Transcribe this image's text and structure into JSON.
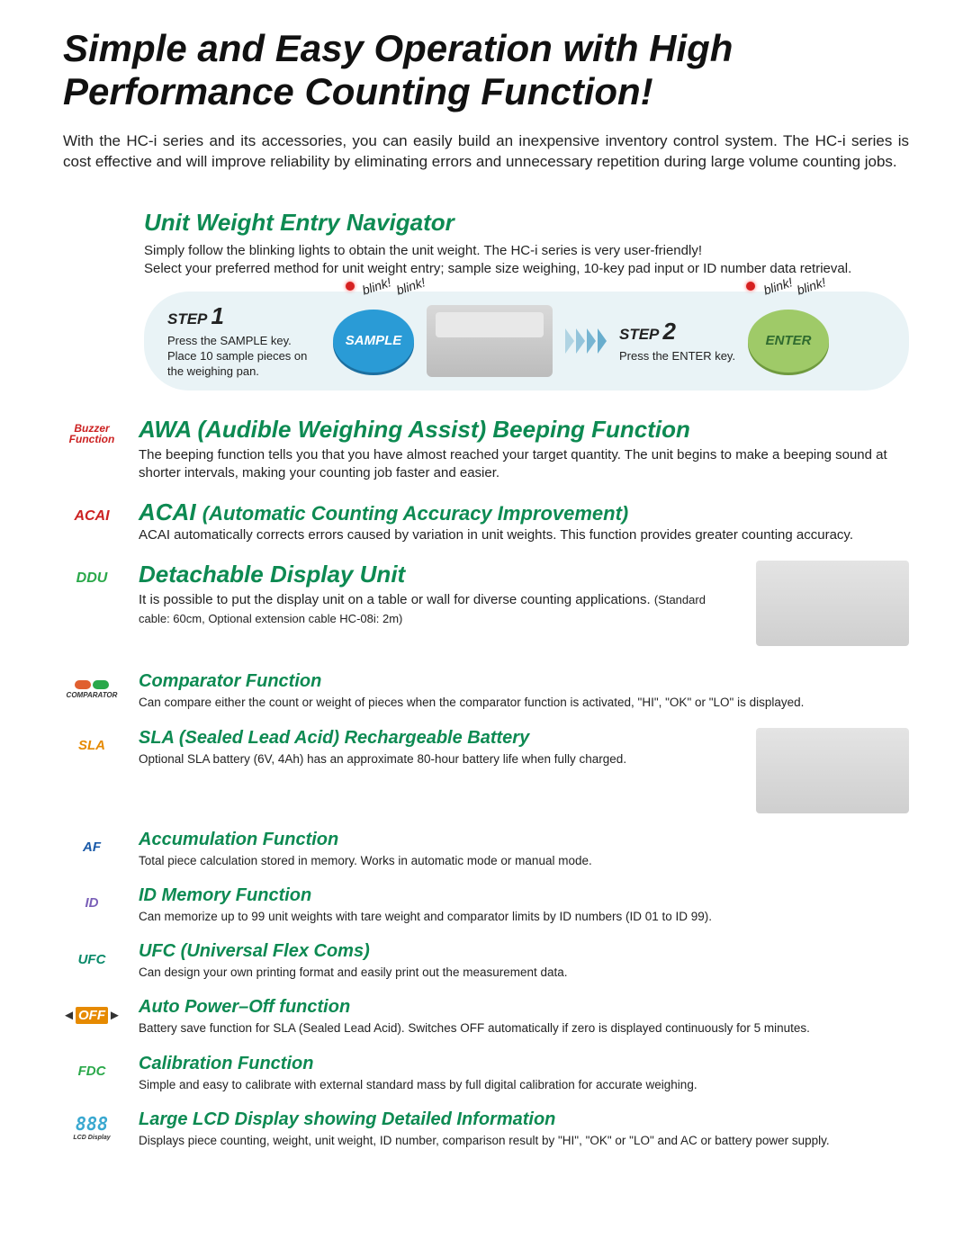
{
  "title": "Simple and Easy Operation with High Performance Counting Function!",
  "intro": "With the HC-i series and its accessories, you can easily build an inexpensive inventory control system. The HC-i series is cost effective and will improve reliability by eliminating errors and unnecessary repetition during large volume counting jobs.",
  "navigator": {
    "title": "Unit Weight Entry Navigator",
    "body1": "Simply follow the blinking lights to obtain the unit weight. The HC-i series is very user-friendly!",
    "body2": "Select your preferred method for unit weight entry; sample size weighing, 10-key pad input or ID number data retrieval.",
    "step1_label": "STEP",
    "step1_num": "1",
    "step1_text": "Press the SAMPLE key. Place 10 sample pieces on the weighing pan.",
    "sample_btn": "SAMPLE",
    "blink": "blink!",
    "step2_label": "STEP",
    "step2_num": "2",
    "step2_text": "Press the ENTER key.",
    "enter_btn": "ENTER"
  },
  "awa": {
    "icon_label": "Buzzer Function",
    "title": "AWA (Audible Weighing Assist) Beeping Function",
    "body": "The beeping function tells you that you have almost reached your target quantity. The unit begins to make a beeping sound at shorter intervals, making your counting job faster and easier."
  },
  "acai": {
    "icon_label": "ACAI",
    "title_main": "ACAI ",
    "title_paren": "(Automatic Counting Accuracy Improvement)",
    "body": "ACAI automatically corrects errors caused by variation in unit weights. This function provides greater counting accuracy."
  },
  "ddu": {
    "icon_label": "DDU",
    "title": "Detachable Display Unit",
    "body": "It is possible to put the display unit on a table or wall for diverse counting applications. ",
    "note": "(Standard cable: 60cm, Optional extension cable HC-08i: 2m)"
  },
  "features": [
    {
      "icon": "COMPARATOR",
      "icon_color": "#333",
      "title": "Comparator Function",
      "body": "Can compare either the count or weight of pieces when the comparator function is activated, \"HI\", \"OK\" or \"LO\" is displayed."
    },
    {
      "icon": "SLA",
      "icon_color": "#e68a00",
      "title": "SLA (Sealed Lead Acid) Rechargeable Battery",
      "body": "Optional SLA battery (6V, 4Ah) has an approximate 80-hour battery life when fully charged."
    },
    {
      "icon": "AF",
      "icon_color": "#1a5aa8",
      "title": "Accumulation Function",
      "body": "Total piece calculation stored in memory. Works in automatic mode or manual mode."
    },
    {
      "icon": "ID",
      "icon_color": "#7a5fb8",
      "title": "ID Memory Function",
      "body": "Can memorize up to 99 unit weights with tare weight and comparator limits by ID numbers (ID 01 to ID 99)."
    },
    {
      "icon": "UFC",
      "icon_color": "#0a8a6a",
      "title": "UFC (Universal Flex Coms)",
      "body": "Can design your own printing format and easily print out the measurement data."
    },
    {
      "icon": "OFF",
      "icon_color": "#e68a00",
      "title": "Auto Power–Off function",
      "body": "Battery save function for SLA (Sealed Lead Acid). Switches OFF automatically if zero is displayed continuously for 5 minutes."
    },
    {
      "icon": "FDC",
      "icon_color": "#2aa84a",
      "title": "Calibration Function",
      "body": "Simple and easy to calibrate with external standard mass by full digital calibration for accurate weighing."
    },
    {
      "icon": "888",
      "icon_color": "#3aa8d0",
      "title": "Large LCD Display showing Detailed Information",
      "body": "Displays piece counting, weight, unit weight, ID number, comparison result by \"HI\", \"OK\" or \"LO\" and AC or battery power supply."
    }
  ],
  "colors": {
    "heading": "#0d8a52",
    "bg": "#ffffff",
    "nav_bg": "#e9f3f6",
    "sample_btn": "#2a9bd6",
    "enter_btn": "#9fca68"
  }
}
